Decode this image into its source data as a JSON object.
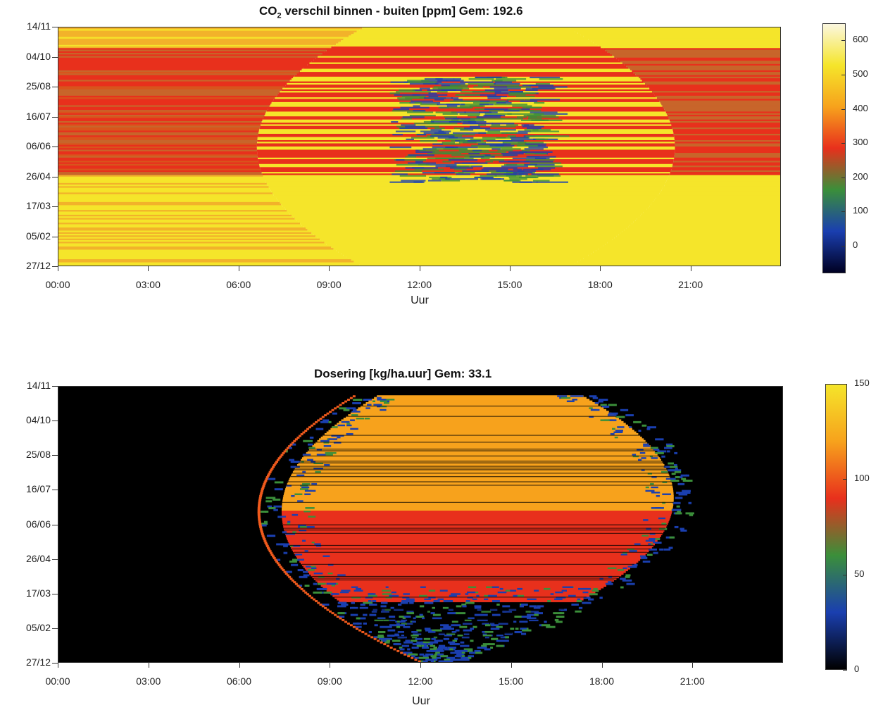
{
  "chart_data": [
    {
      "type": "heatmap",
      "title_prefix": "CO",
      "title_sub": "2",
      "title_suffix": " verschil binnen - buiten  [ppm] Gem: 192.6",
      "xlabel": "Uur",
      "x_ticks": [
        "00:00",
        "03:00",
        "06:00",
        "09:00",
        "12:00",
        "15:00",
        "18:00",
        "21:00"
      ],
      "y_ticks": [
        "14/11",
        "04/10",
        "25/08",
        "16/07",
        "06/06",
        "26/04",
        "17/03",
        "05/02",
        "27/12"
      ],
      "colorbar_ticks": [
        0,
        100,
        200,
        300,
        400,
        500,
        600
      ],
      "colorbar_range": [
        -80,
        650
      ],
      "colors": [
        "#000022",
        "#1a3fb0",
        "#3b8f3a",
        "#e8301c",
        "#f7a21c",
        "#f5e52a",
        "#fbf7e0"
      ]
    },
    {
      "type": "heatmap",
      "title": "Dosering [kg/ha.uur] Gem: 33.1",
      "xlabel": "Uur",
      "x_ticks": [
        "00:00",
        "03:00",
        "06:00",
        "09:00",
        "12:00",
        "15:00",
        "18:00",
        "21:00"
      ],
      "y_ticks": [
        "14/11",
        "04/10",
        "25/08",
        "16/07",
        "06/06",
        "26/04",
        "17/03",
        "05/02",
        "27/12"
      ],
      "colorbar_ticks": [
        0,
        50,
        100,
        150
      ],
      "colorbar_range": [
        0,
        150
      ],
      "colors": [
        "#000000",
        "#1a3fb0",
        "#3b8f3a",
        "#e8301c",
        "#f7a21c",
        "#f5e52a"
      ]
    }
  ]
}
